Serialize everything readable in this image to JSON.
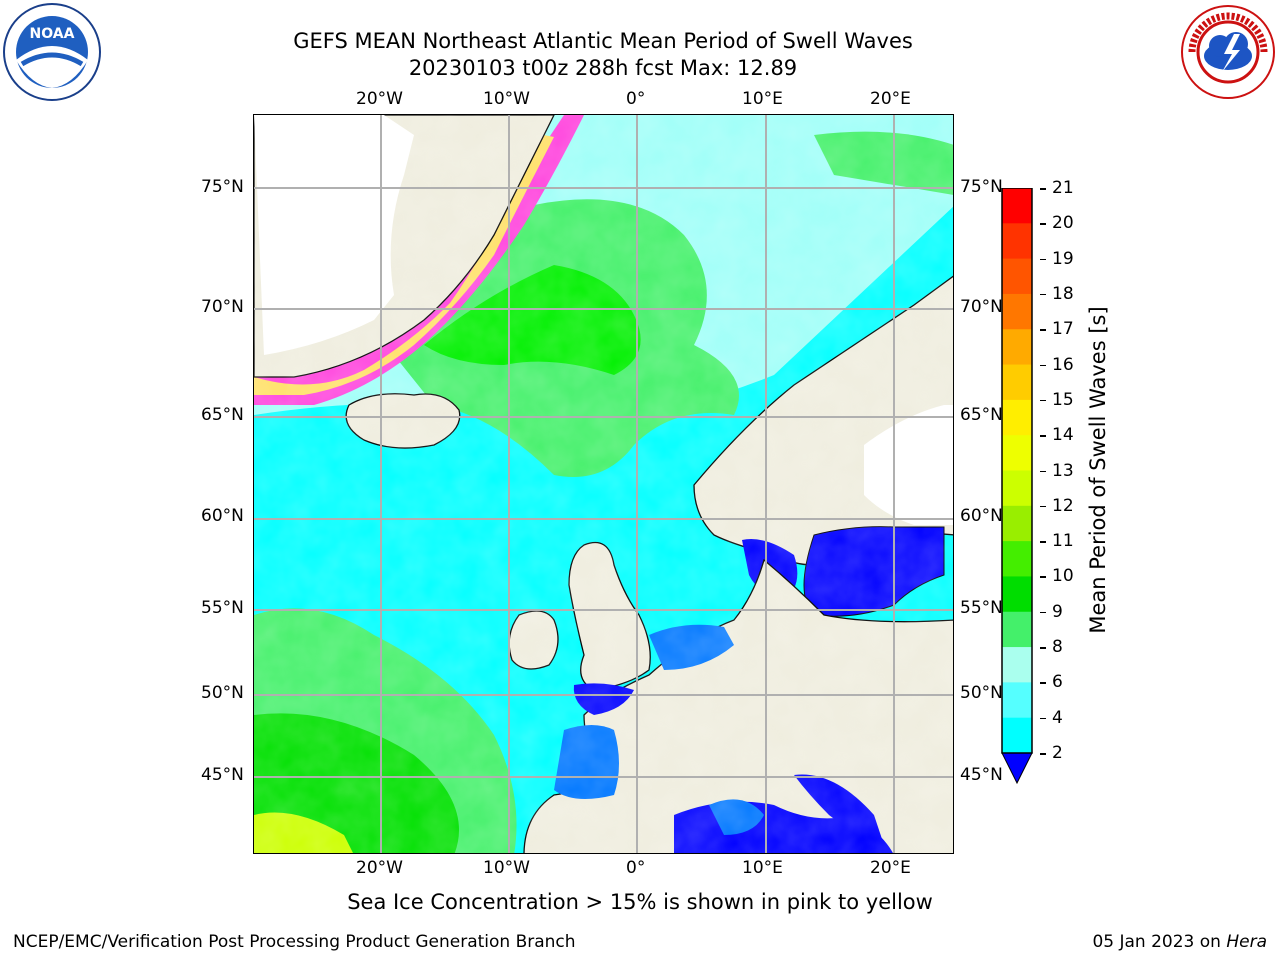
{
  "title": {
    "line1": "GEFS MEAN Northeast Atlantic Mean Period of Swell Waves",
    "line2": "20230103 t00z 288h fcst   Max: 12.89"
  },
  "map": {
    "lon_labels": [
      "20°W",
      "10°W",
      "0°",
      "10°E",
      "20°E"
    ],
    "lat_labels": [
      "75°N",
      "70°N",
      "65°N",
      "60°N",
      "55°N",
      "50°N",
      "45°N"
    ],
    "colors": {
      "land": "#efedde",
      "ocean_low": "#00ffff",
      "ocean_mid": "#9ffff8",
      "ocean_high": "#44f06a",
      "ocean_green": "#00f000",
      "enclosed_sea": "#0000ff",
      "coastal": "#0077ff",
      "ice_pink": "#ff44dd",
      "ice_yellow": "#ffe066",
      "grid": "#b0b0b0"
    }
  },
  "colorbar": {
    "title": "Mean Period of Swell Waves [s]",
    "ticks": [
      "21",
      "20",
      "19",
      "18",
      "17",
      "16",
      "15",
      "14",
      "13",
      "12",
      "11",
      "10",
      "9",
      "8",
      "6",
      "4",
      "2"
    ],
    "bands": [
      "#ff0000",
      "#ff3300",
      "#ff5500",
      "#ff7700",
      "#ffaa00",
      "#ffcc00",
      "#ffee00",
      "#eeff00",
      "#ccff00",
      "#99ee00",
      "#44ee00",
      "#00dd00",
      "#44f06a",
      "#aaffee",
      "#55ffff",
      "#00ffff",
      "#0077ff"
    ],
    "extend_color": "#0000ff"
  },
  "note": "Sea Ice Concentration > 15% is shown in pink to yellow",
  "footer": {
    "left": "NCEP/EMC/Verification Post Processing Product Generation Branch",
    "right_date": "05 Jan 2023 on ",
    "right_host": "Hera"
  },
  "logos": {
    "noaa": "NOAA",
    "nws": "NATIONAL WEATHER SERVICE"
  }
}
